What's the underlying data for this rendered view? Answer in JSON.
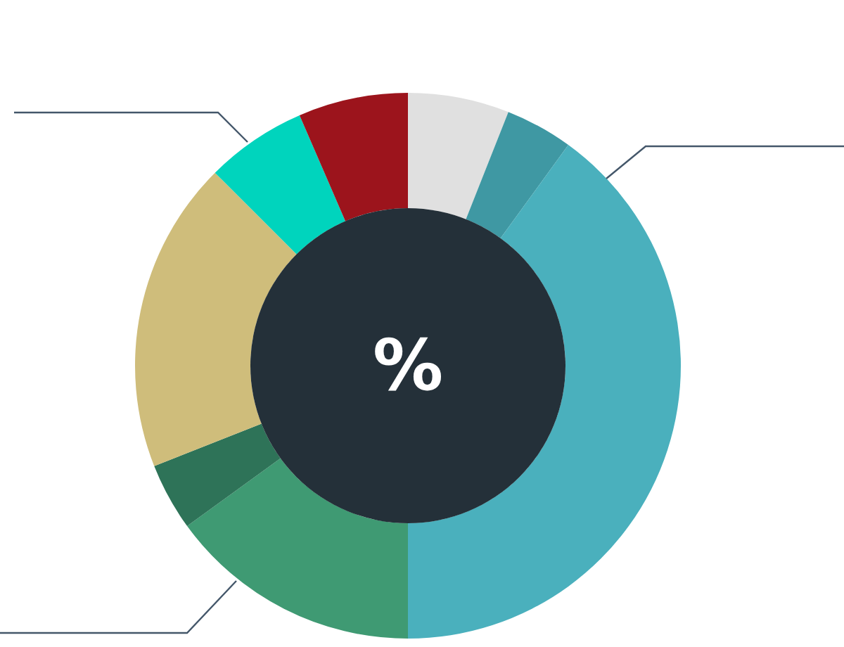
{
  "chart_data": {
    "type": "donut",
    "categories": [
      null,
      null,
      null,
      null,
      null,
      null,
      null,
      null
    ],
    "values": [
      6,
      4,
      40,
      15,
      4,
      18.5,
      6,
      6.5
    ],
    "colors": [
      "#e0e0e0",
      "#3f98a3",
      "#4ab0bd",
      "#3f9a73",
      "#2e7358",
      "#cfbd7b",
      "#00d4bd",
      "#9c141c"
    ],
    "annotations": [
      "%"
    ]
  }
}
